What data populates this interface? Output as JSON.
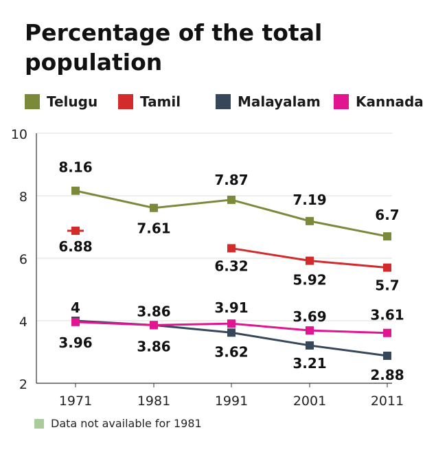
{
  "chart_data": {
    "type": "line",
    "title": "Percentage of the total population",
    "categories": [
      "1971",
      "1981",
      "1991",
      "2001",
      "2011"
    ],
    "ylim": [
      2,
      10
    ],
    "yticks": [
      "10",
      "8",
      "6",
      "4",
      "2"
    ],
    "yticks_values": [
      10,
      8,
      6,
      4,
      2
    ],
    "grid": true,
    "legend_position": "top",
    "series": [
      {
        "name": "Telugu",
        "color": "#7a8a3a",
        "values": [
          8.16,
          7.61,
          7.87,
          7.19,
          6.7
        ],
        "labels": [
          "8.16",
          "7.61",
          "7.87",
          "7.19",
          "6.7"
        ]
      },
      {
        "name": "Tamil",
        "color": "#d32b2b",
        "values": [
          6.88,
          null,
          6.32,
          5.92,
          5.7
        ],
        "labels": [
          "6.88",
          "",
          "6.32",
          "5.92",
          "5.7"
        ]
      },
      {
        "name": "Malayalam",
        "color": "#36475a",
        "values": [
          4,
          3.86,
          3.62,
          3.21,
          2.88
        ],
        "labels": [
          "4",
          "3.86",
          "3.62",
          "3.21",
          "2.88"
        ]
      },
      {
        "name": "Kannada",
        "color": "#e0158f",
        "values": [
          3.96,
          3.86,
          3.91,
          3.69,
          3.61
        ],
        "labels": [
          "3.96",
          "3.86",
          "3.91",
          "3.69",
          "3.61"
        ]
      }
    ],
    "note": "Data not available for 1981",
    "note_color": "#a8cc9a"
  }
}
